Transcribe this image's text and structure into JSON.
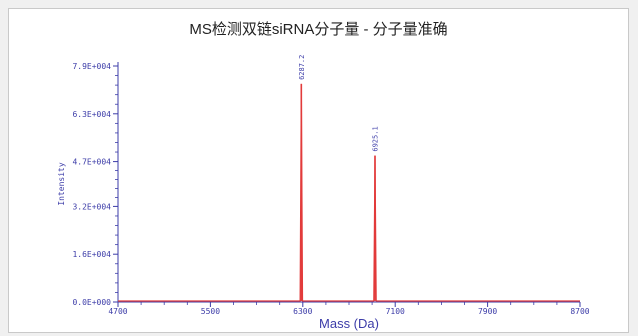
{
  "chart_data": {
    "type": "line",
    "title": "MS检测双链siRNA分子量 - 分子量准确",
    "xlabel": "Mass (Da)",
    "ylabel": "Intensity",
    "xlim": [
      4700,
      8700
    ],
    "ylim": [
      0,
      79000
    ],
    "x_ticks": [
      4700,
      5500,
      6300,
      7100,
      7900,
      8700
    ],
    "x_tick_labels": [
      "4700",
      "5500",
      "6300",
      "7100",
      "7900",
      "8700"
    ],
    "y_ticks": [
      0,
      16000,
      32000,
      47000,
      63000,
      79000
    ],
    "y_tick_labels": [
      "0.0E+000",
      "1.6E+004",
      "3.2E+004",
      "4.7E+004",
      "6.3E+004",
      "7.9E+004"
    ],
    "series": [
      {
        "peaks": [
          {
            "x": 6287.2,
            "y": 73000,
            "label": "6287.2"
          },
          {
            "x": 6925.1,
            "y": 49000,
            "label": "6925.1"
          }
        ]
      }
    ],
    "colors": {
      "trace": "#e23b3b",
      "axis": "#3c3ca8",
      "text": "#3c3ca8"
    }
  }
}
